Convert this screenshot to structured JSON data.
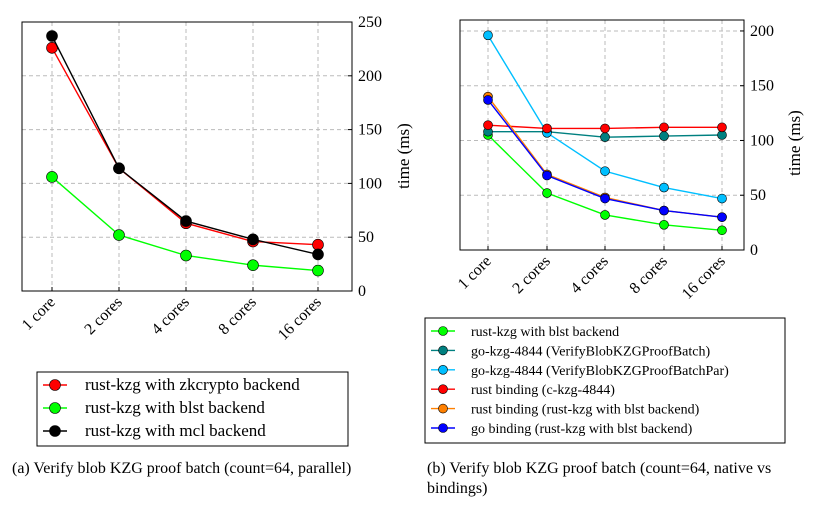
{
  "chart_data": [
    {
      "type": "line",
      "categories": [
        "1 core",
        "2 cores",
        "4 cores",
        "8 cores",
        "16 cores"
      ],
      "ylabel": "time (ms)",
      "ylim": [
        0,
        250
      ],
      "yticks": [
        "0",
        "50",
        "100",
        "150",
        "200",
        "250"
      ],
      "grid": true,
      "series": [
        {
          "name": "rust-kzg with zkcrypto backend",
          "color": "#ff0000",
          "values": [
            226,
            114,
            63,
            46,
            43
          ]
        },
        {
          "name": "rust-kzg with blst backend",
          "color": "#00ff00",
          "values": [
            106,
            52,
            33,
            24,
            19
          ]
        },
        {
          "name": "rust-kzg with mcl backend",
          "color": "#000000",
          "values": [
            237,
            114,
            65,
            48,
            34
          ]
        }
      ],
      "caption": "(a) Verify blob KZG proof batch (count=64, parallel)"
    },
    {
      "type": "line",
      "categories": [
        "1 core",
        "2 cores",
        "4 cores",
        "8 cores",
        "16 cores"
      ],
      "ylabel": "time (ms)",
      "ylim": [
        0,
        210
      ],
      "yticks": [
        "0",
        "50",
        "100",
        "150",
        "200"
      ],
      "grid": true,
      "series": [
        {
          "name": "rust-kzg with blst backend",
          "color": "#00ff00",
          "values": [
            105,
            52,
            32,
            23,
            18
          ]
        },
        {
          "name": "go-kzg-4844 (VerifyBlobKZGProofBatch)",
          "color": "#008080",
          "values": [
            108,
            108,
            103,
            104,
            105
          ]
        },
        {
          "name": "go-kzg-4844 (VerifyBlobKZGProofBatchPar)",
          "color": "#00bfff",
          "values": [
            196,
            107,
            72,
            57,
            47
          ]
        },
        {
          "name": "rust binding (c-kzg-4844)",
          "color": "#ff0000",
          "values": [
            114,
            111,
            111,
            112,
            112
          ]
        },
        {
          "name": "rust binding (rust-kzg with blst backend)",
          "color": "#ff8000",
          "values": [
            140,
            69,
            48,
            36,
            30
          ]
        },
        {
          "name": "go binding (rust-kzg with blst backend)",
          "color": "#0000ff",
          "values": [
            137,
            68,
            47,
            36,
            30
          ]
        }
      ],
      "caption": "(b) Verify blob KZG proof batch (count=64, native vs bindings)"
    }
  ]
}
